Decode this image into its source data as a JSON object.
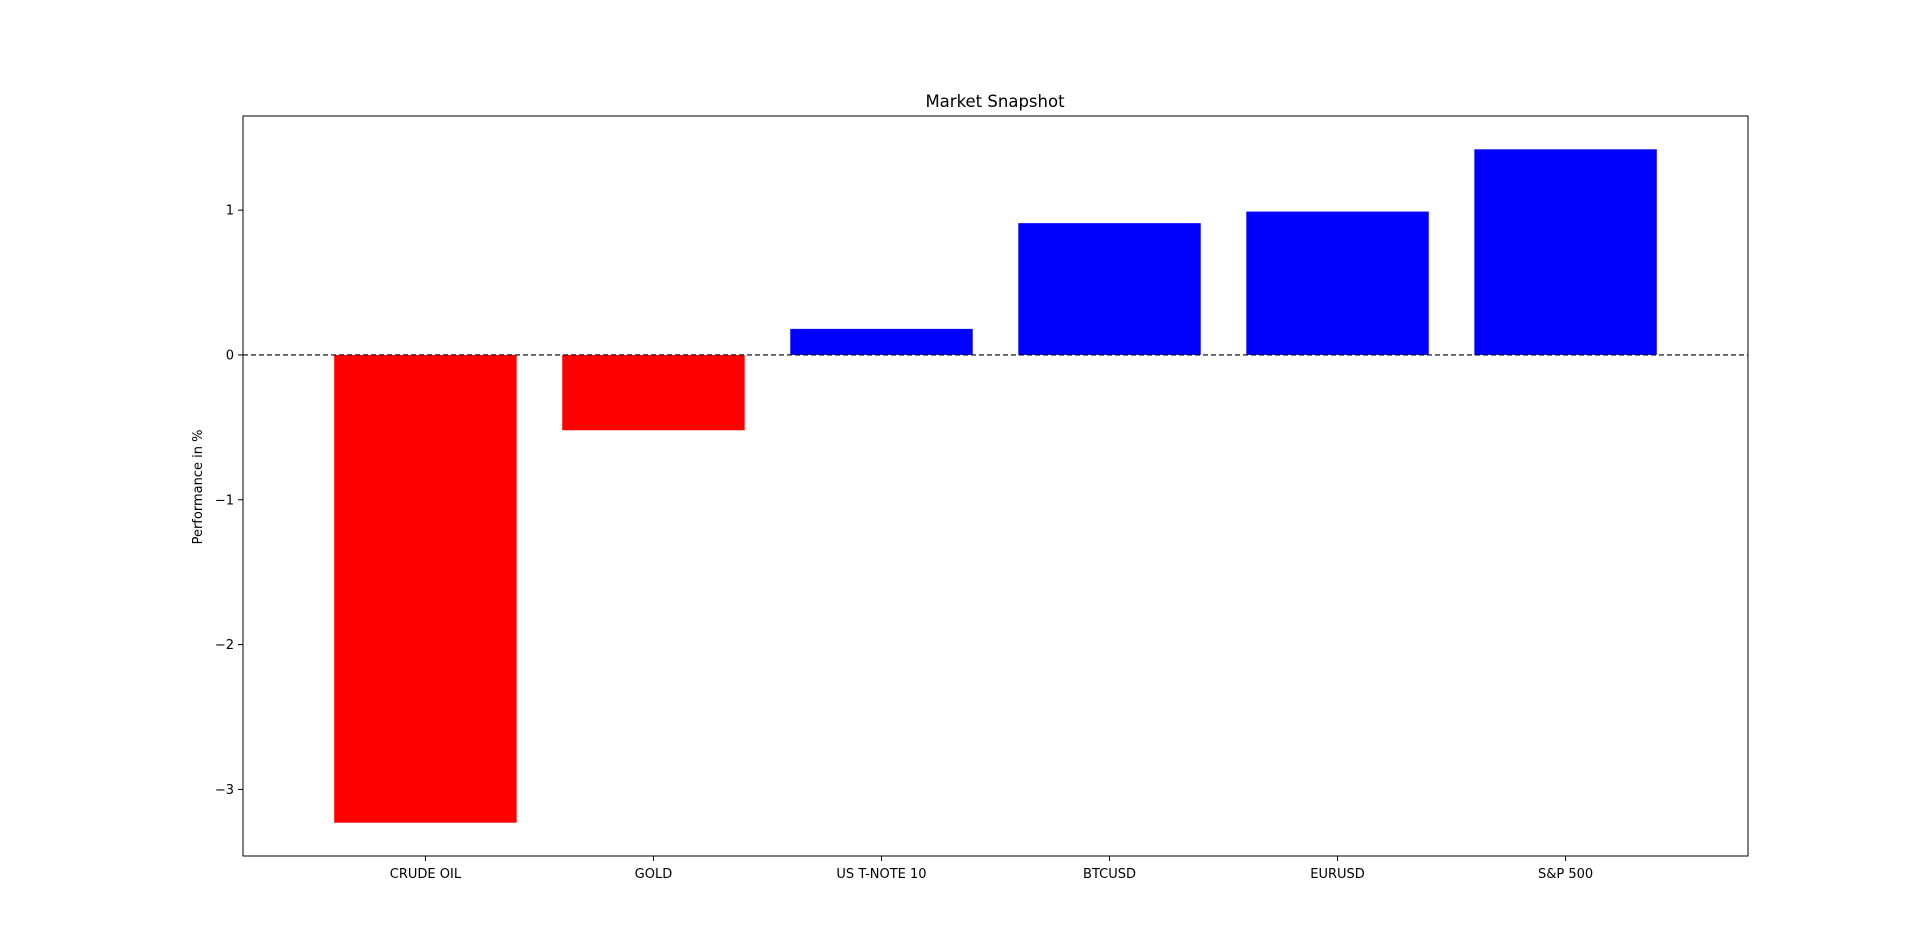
{
  "chart_data": {
    "type": "bar",
    "title": "Market Snapshot",
    "xlabel": "",
    "ylabel": "Performance in %",
    "categories": [
      "CRUDE OIL",
      "GOLD",
      "US T-NOTE 10",
      "BTCUSD",
      "EURUSD",
      "S&P 500"
    ],
    "values": [
      -3.23,
      -0.52,
      0.18,
      0.91,
      0.99,
      1.42
    ],
    "colors": [
      "#ff0000",
      "#ff0000",
      "#0000ff",
      "#0000ff",
      "#0000ff",
      "#0000ff"
    ],
    "ylim": [
      -3.46,
      1.65
    ],
    "yticks": [
      1,
      0,
      -1,
      -2,
      -3
    ],
    "ytick_labels": [
      "1",
      "0",
      "−1",
      "−2",
      "−3"
    ],
    "zero_line": "dashed",
    "grid": false
  }
}
